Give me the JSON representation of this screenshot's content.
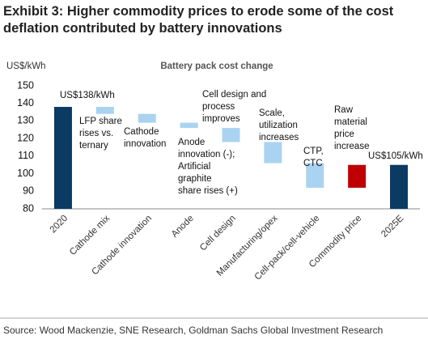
{
  "title": "Exhibit 3: Higher commodity prices to erode some of the cost deflation contributed by battery innovations",
  "source": "Source: Wood Mackenzie, SNE Research, Goldman Sachs Global Investment Research",
  "chart_data": {
    "type": "waterfall",
    "title": "Battery pack cost change",
    "y_label": "US$/kWh",
    "categories": [
      "2020",
      "Cathode mix",
      "Cathode innovation",
      "Anode",
      "Cell design",
      "Manufacturing/opex",
      "Cell-pack/cell-vehicle",
      "Commodity price",
      "2025E"
    ],
    "values": [
      138,
      -4,
      -5,
      -3,
      -8,
      -12,
      -14,
      13,
      105
    ],
    "totals": [
      true,
      false,
      false,
      false,
      false,
      false,
      false,
      false,
      true
    ],
    "value_labels": [
      "US$138/kWh",
      null,
      null,
      null,
      null,
      null,
      null,
      null,
      "US$105/kWh"
    ],
    "colors": {
      "total": "#0b3a63",
      "decrease": "#a9d3f0",
      "increase": "#c00000"
    },
    "annotations": [
      [
        "LFP share",
        "rises vs.",
        "ternary"
      ],
      [
        "Cathode",
        "innovation"
      ],
      [
        "Anode",
        "innovation (-);",
        "Artificial",
        "graphite",
        "share rises (+)"
      ],
      [
        "Cell design and",
        "process",
        "improves"
      ],
      [
        "Scale,",
        "utilization",
        "increases"
      ],
      [
        "CTP,",
        "CTC"
      ],
      [
        "Raw",
        "material",
        "price",
        "increase"
      ]
    ],
    "ylim": [
      80,
      150
    ],
    "yticks": [
      80,
      90,
      100,
      110,
      120,
      130,
      140,
      150
    ],
    "grid": false
  }
}
